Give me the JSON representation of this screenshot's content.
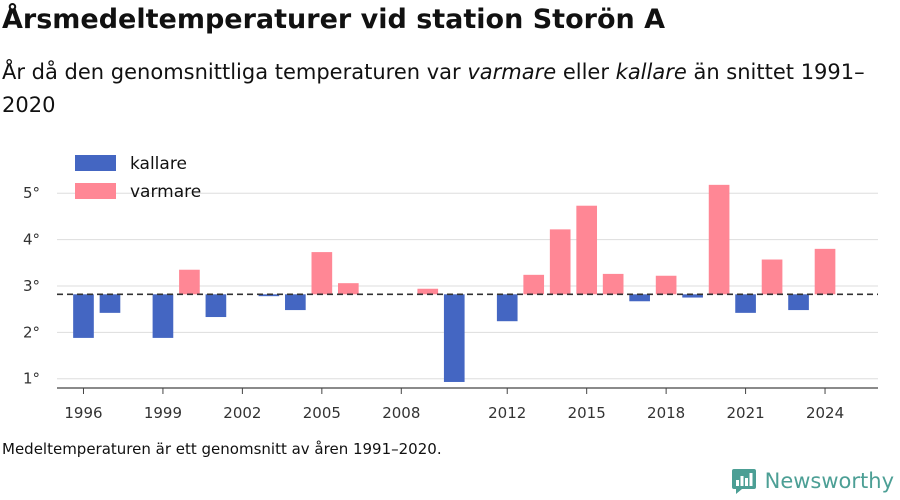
{
  "header": {
    "title": "Årsmedeltemperaturer vid station Storön A",
    "subtitle_1": "År då den genomsnittliga temperaturen var ",
    "subtitle_em1": "varmare",
    "subtitle_2": " eller ",
    "subtitle_em2": "kallare",
    "subtitle_3": " än snittet 1991–2020"
  },
  "footnote": "Medeltemperaturen är ett genomsnitt av åren 1991–2020.",
  "brand": {
    "name": "Newsworthy",
    "icon": "newsworthy-logo-icon",
    "color": "#4c9f95"
  },
  "colors": {
    "kallare": "#4466c2",
    "varmare": "#ff8795",
    "baseline": "#333333",
    "grid": "#dddddd"
  },
  "chart_data": {
    "type": "bar",
    "baseline": 2.82,
    "ylim": [
      0.8,
      5.5
    ],
    "yticks": [
      1,
      2,
      3,
      4,
      5
    ],
    "ytick_labels": [
      "1°",
      "2°",
      "3°",
      "4°",
      "5°"
    ],
    "xlim": [
      1995,
      2026
    ],
    "xticks": [
      1996,
      1999,
      2002,
      2005,
      2008,
      2012,
      2015,
      2018,
      2021,
      2024
    ],
    "xtick_labels": [
      "1996",
      "1999",
      "2002",
      "2005",
      "2008",
      "2012",
      "2015",
      "2018",
      "2021",
      "2024"
    ],
    "legend": {
      "position": "top-left",
      "items": [
        {
          "key": "kallare",
          "label": "kallare"
        },
        {
          "key": "varmare",
          "label": "varmare"
        }
      ]
    },
    "grid": true,
    "x": [
      1996,
      1997,
      1999,
      2000,
      2001,
      2003,
      2004,
      2005,
      2006,
      2009,
      2010,
      2012,
      2013,
      2014,
      2015,
      2016,
      2017,
      2018,
      2019,
      2020,
      2021,
      2022,
      2023,
      2024
    ],
    "values": [
      1.88,
      2.42,
      1.88,
      3.35,
      2.33,
      2.78,
      2.48,
      3.73,
      3.06,
      2.94,
      0.93,
      2.24,
      3.24,
      4.22,
      4.73,
      3.26,
      2.67,
      3.22,
      2.75,
      5.18,
      2.42,
      3.57,
      2.48,
      3.8
    ]
  }
}
